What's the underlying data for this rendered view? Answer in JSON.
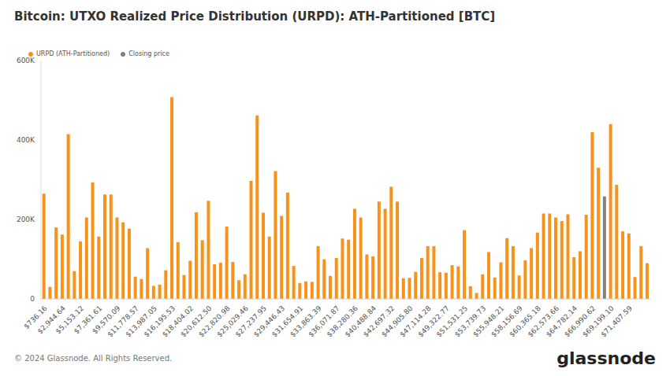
{
  "chart_data": {
    "type": "bar",
    "title": "Bitcoin: UTXO Realized Price Distribution (URPD): ATH-Partitioned [BTC]",
    "source": "© 2024 Glassnode. All Rights Reserved.",
    "watermark": "glassnode",
    "stacked": true,
    "grid": false,
    "categories": [
      "$736.16",
      null,
      null,
      "$2,944.64",
      null,
      null,
      "$5,153.12",
      null,
      null,
      "$7,361.61",
      null,
      null,
      "$9,570.09",
      null,
      null,
      "$11,778.57",
      null,
      null,
      "$13,987.05",
      null,
      null,
      "$16,195.53",
      null,
      null,
      "$18,404.02",
      null,
      null,
      "$20,612.50",
      null,
      null,
      "$22,820.98",
      null,
      null,
      "$25,029.46",
      null,
      null,
      "$27,237.95",
      null,
      null,
      "$29,446.43",
      null,
      null,
      "$31,654.91",
      null,
      null,
      "$33,863.39",
      null,
      null,
      "$36,071.87",
      null,
      null,
      "$38,280.36",
      null,
      null,
      "$40,488.84",
      null,
      null,
      "$42,697.32",
      null,
      null,
      "$44,905.80",
      null,
      null,
      "$47,114.28",
      null,
      null,
      "$49,322.77",
      null,
      null,
      "$51,531.25",
      null,
      null,
      "$53,739.73",
      null,
      null,
      "$55,948.21",
      null,
      null,
      "$58,156.69",
      null,
      null,
      "$60,365.18",
      null,
      null,
      "$62,573.66",
      null,
      null,
      "$64,782.14",
      null,
      null,
      "$66,990.62",
      null,
      null,
      "$69,199.10",
      null,
      null,
      "$71,407.59",
      null,
      null,
      null
    ],
    "series": [
      {
        "name": "URPD (ATH-Partitioned)",
        "color": "#f7931a",
        "values": [
          265000,
          30000,
          180000,
          162000,
          415000,
          70000,
          145000,
          205000,
          293000,
          157000,
          263000,
          263000,
          205000,
          193000,
          177000,
          56000,
          50000,
          128000,
          33000,
          36000,
          72000,
          508000,
          143000,
          60000,
          96000,
          218000,
          148000,
          247000,
          87000,
          91000,
          182000,
          93000,
          47000,
          62000,
          297000,
          462000,
          217000,
          157000,
          322000,
          209000,
          268000,
          83000,
          40000,
          44000,
          43000,
          133000,
          100000,
          58000,
          103000,
          152000,
          149000,
          227000,
          205000,
          112000,
          107000,
          245000,
          227000,
          282000,
          245000,
          52000,
          53000,
          68000,
          103000,
          133000,
          133000,
          67000,
          66000,
          85000,
          82000,
          173000,
          32000,
          15000,
          62000,
          118000,
          54000,
          92000,
          153000,
          133000,
          59000,
          97000,
          128000,
          167000,
          215000,
          215000,
          205000,
          196000,
          213000,
          105000,
          120000,
          212000,
          420000,
          330000,
          null,
          440000,
          287000,
          170000,
          165000,
          55000,
          133000,
          90000
        ]
      },
      {
        "name": "Closing price",
        "color": "#808080",
        "values": [
          null,
          null,
          null,
          null,
          null,
          null,
          null,
          null,
          null,
          null,
          null,
          null,
          null,
          null,
          null,
          null,
          null,
          null,
          null,
          null,
          null,
          null,
          null,
          null,
          null,
          null,
          null,
          null,
          null,
          null,
          null,
          null,
          null,
          null,
          null,
          null,
          null,
          null,
          null,
          null,
          null,
          null,
          null,
          null,
          null,
          null,
          null,
          null,
          null,
          null,
          null,
          null,
          null,
          null,
          null,
          null,
          null,
          null,
          null,
          null,
          null,
          null,
          null,
          null,
          null,
          null,
          null,
          null,
          null,
          null,
          null,
          null,
          null,
          null,
          null,
          null,
          null,
          null,
          null,
          null,
          null,
          null,
          null,
          null,
          null,
          null,
          null,
          null,
          null,
          null,
          null,
          null,
          258000,
          null,
          null,
          null,
          null,
          null,
          null,
          null
        ]
      }
    ],
    "ylim": [
      0,
      600000
    ],
    "yticks": [
      0,
      {
        "value": 200000,
        "label": "200K"
      },
      {
        "value": 400000,
        "label": "400K"
      },
      {
        "value": 600000,
        "label": "600K"
      }
    ]
  }
}
